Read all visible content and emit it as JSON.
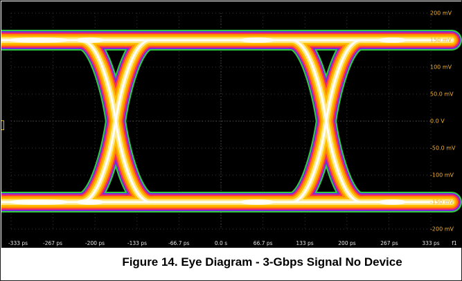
{
  "caption": "Figure 14. Eye Diagram - 3-Gbps Signal No Device",
  "chart_data": {
    "type": "eye-diagram",
    "title": "",
    "x_unit": "ps",
    "y_unit": "mV",
    "xlim": [
      -333,
      333
    ],
    "ylim": [
      -200,
      200
    ],
    "x_tick_values": [
      -333,
      -267,
      -200,
      -133,
      -66.7,
      0,
      66.7,
      133,
      200,
      267,
      333
    ],
    "x_tick_labels": [
      "-333 ps",
      "-267 ps",
      "-200 ps",
      "-133 ps",
      "-66.7 ps",
      "0.0 s",
      "66.7 ps",
      "133 ps",
      "200 ps",
      "267 ps",
      "333 ps"
    ],
    "x_axis_suffix": "f1",
    "y_tick_values": [
      200,
      150,
      100,
      50,
      0,
      -50,
      -100,
      -150,
      -200
    ],
    "y_tick_labels": [
      "200 mV",
      "150 mV",
      "100 mV",
      "50.0 mV",
      "0.0 V",
      "-50.0 mV",
      "-100 mV",
      "-150 mV",
      "-200 mV"
    ],
    "high_level_mV": 150,
    "low_level_mV": -150,
    "crossing_times_ps": [
      -167,
      167
    ],
    "crossing_level_mV": 0,
    "grid": true,
    "background": "#000000",
    "density_colors": [
      "#ffffff",
      "#ffe98a",
      "#ffc000",
      "#ff8a00",
      "#ff2a55",
      "#7a2bd6",
      "#2ecc40"
    ]
  }
}
